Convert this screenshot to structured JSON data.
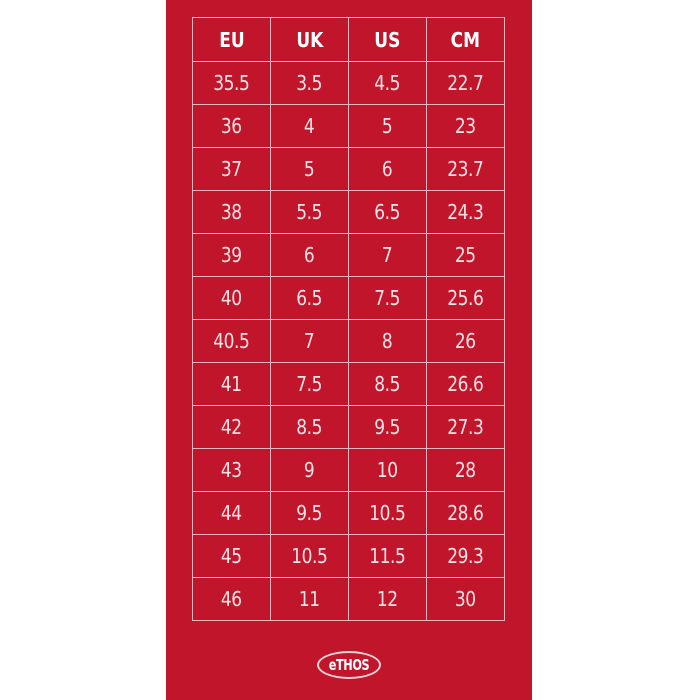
{
  "size_chart": {
    "columns": [
      "EU",
      "UK",
      "US",
      "CM"
    ],
    "rows": [
      [
        "35.5",
        "3.5",
        "4.5",
        "22.7"
      ],
      [
        "36",
        "4",
        "5",
        "23"
      ],
      [
        "37",
        "5",
        "6",
        "23.7"
      ],
      [
        "38",
        "5.5",
        "6.5",
        "24.3"
      ],
      [
        "39",
        "6",
        "7",
        "25"
      ],
      [
        "40",
        "6.5",
        "7.5",
        "25.6"
      ],
      [
        "40.5",
        "7",
        "8",
        "26"
      ],
      [
        "41",
        "7.5",
        "8.5",
        "26.6"
      ],
      [
        "42",
        "8.5",
        "9.5",
        "27.3"
      ],
      [
        "43",
        "9",
        "10",
        "28"
      ],
      [
        "44",
        "9.5",
        "10.5",
        "28.6"
      ],
      [
        "45",
        "10.5",
        "11.5",
        "29.3"
      ],
      [
        "46",
        "11",
        "12",
        "30"
      ]
    ]
  },
  "brand": {
    "logo_text": "eTHOS"
  },
  "colors": {
    "background": "#c1152b",
    "grid": "#f1b6bd",
    "text": "#fbe3e6"
  }
}
